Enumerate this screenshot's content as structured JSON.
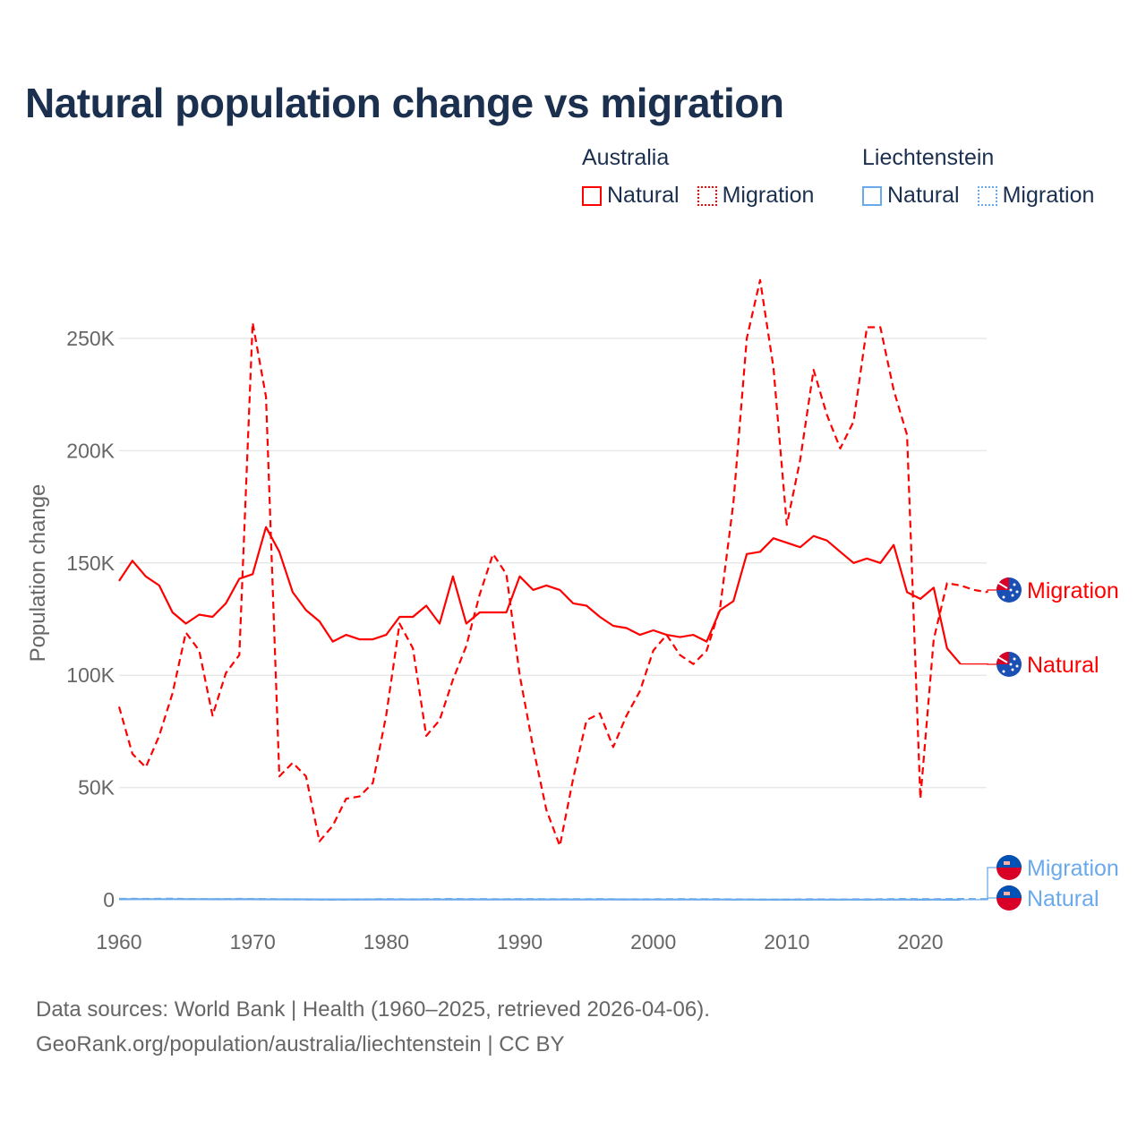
{
  "title": "Natural population change vs migration",
  "legend": {
    "groups": [
      {
        "name": "Australia",
        "color": "#ff0000",
        "items": [
          "Natural",
          "Migration"
        ]
      },
      {
        "name": "Liechtenstein",
        "color": "#6aaaec",
        "items": [
          "Natural",
          "Migration"
        ]
      }
    ]
  },
  "footer": {
    "line1": "Data sources: World Bank | Health (1960–2025, retrieved 2026-04-06).",
    "line2": "GeoRank.org/population/australia/liechtenstein | CC BY"
  },
  "chart_data": {
    "type": "line",
    "title": "Natural population change vs migration",
    "xlabel": "",
    "ylabel": "Population change",
    "xlim": [
      1960,
      2025
    ],
    "ylim": [
      0,
      280000
    ],
    "x_ticks": [
      1960,
      1970,
      1980,
      1990,
      2000,
      2010,
      2020
    ],
    "x_tick_labels": [
      "1960",
      "1970",
      "1980",
      "1990",
      "2000",
      "2010",
      "2020"
    ],
    "y_ticks": [
      0,
      50000,
      100000,
      150000,
      200000,
      250000
    ],
    "y_tick_labels": [
      "0",
      "50K",
      "100K",
      "150K",
      "200K",
      "250K"
    ],
    "grid": true,
    "legend_position": "top-right",
    "series": [
      {
        "name": "Australia Natural",
        "label": "Natural",
        "country": "Australia",
        "color": "#ff0000",
        "dash": false,
        "start_year": 1960,
        "values": [
          142000,
          151000,
          144000,
          140000,
          128000,
          123000,
          127000,
          126000,
          132000,
          143000,
          145000,
          166000,
          155000,
          137000,
          129000,
          124000,
          115000,
          118000,
          116000,
          116000,
          118000,
          126000,
          126000,
          131000,
          123000,
          144000,
          123000,
          128000,
          128000,
          128000,
          144000,
          138000,
          140000,
          138000,
          132000,
          131000,
          126000,
          122000,
          121000,
          118000,
          120000,
          118000,
          117000,
          118000,
          115000,
          129000,
          133000,
          154000,
          155000,
          161000,
          159000,
          157000,
          162000,
          160000,
          155000,
          150000,
          152000,
          150000,
          158000,
          137000,
          134000,
          139000,
          112000,
          105000
        ]
      },
      {
        "name": "Australia Migration",
        "label": "Migration",
        "country": "Australia",
        "color": "#ff0000",
        "dash": true,
        "start_year": 1960,
        "values": [
          86000,
          65000,
          59000,
          73000,
          92000,
          119000,
          111000,
          82000,
          101000,
          109000,
          257000,
          224000,
          55000,
          61000,
          55000,
          26000,
          33000,
          45000,
          46000,
          52000,
          82000,
          123000,
          112000,
          73000,
          80000,
          98000,
          113000,
          136000,
          154000,
          145000,
          100000,
          68000,
          40000,
          24000,
          54000,
          80000,
          83000,
          68000,
          82000,
          93000,
          111000,
          118000,
          109000,
          105000,
          111000,
          130000,
          177000,
          250000,
          276000,
          237000,
          167000,
          196000,
          236000,
          216000,
          201000,
          213000,
          255000,
          255000,
          227000,
          207000,
          45000,
          116000,
          141000,
          140000,
          138000,
          137000
        ]
      },
      {
        "name": "Liechtenstein Natural",
        "label": "Natural",
        "country": "Liechtenstein",
        "color": "#6aaaec",
        "dash": false,
        "start_year": 1960,
        "values": [
          250,
          260,
          270,
          260,
          280,
          270,
          260,
          250,
          240,
          230,
          220,
          210,
          200,
          190,
          180,
          170,
          160,
          150,
          150,
          140,
          150,
          150,
          160,
          150,
          140,
          150,
          150,
          140,
          130,
          140,
          150,
          140,
          150,
          150,
          140,
          130,
          140,
          150,
          140,
          120,
          130,
          120,
          110,
          100,
          110,
          100,
          90,
          100,
          90,
          80,
          90,
          80,
          70,
          80,
          90,
          70,
          80,
          70,
          60,
          60,
          40,
          60,
          50,
          40
        ]
      },
      {
        "name": "Liechtenstein Migration",
        "label": "Migration",
        "country": "Liechtenstein",
        "color": "#6aaaec",
        "dash": true,
        "start_year": 1960,
        "values": [
          400,
          450,
          380,
          420,
          500,
          350,
          300,
          280,
          320,
          400,
          350,
          300,
          250,
          200,
          150,
          100,
          80,
          120,
          200,
          250,
          300,
          250,
          200,
          280,
          300,
          350,
          320,
          300,
          280,
          260,
          300,
          320,
          280,
          250,
          260,
          280,
          300,
          250,
          200,
          180,
          220,
          250,
          300,
          280,
          260,
          240,
          200,
          150,
          100,
          80,
          120,
          180,
          220,
          200,
          150,
          180,
          200,
          250,
          300,
          350,
          300,
          280,
          300,
          350,
          320,
          300
        ]
      }
    ]
  }
}
